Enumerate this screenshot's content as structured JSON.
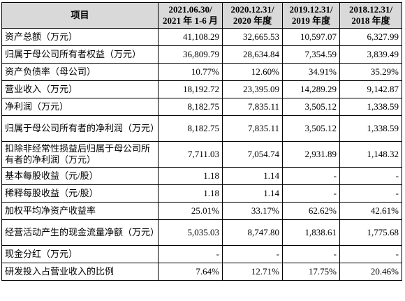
{
  "table": {
    "headers": [
      {
        "line1": "项目",
        "line2": ""
      },
      {
        "line1": "2021.06.30/",
        "line2": "2021 年 1-6 月"
      },
      {
        "line1": "2020.12.31/",
        "line2": "2020 年度"
      },
      {
        "line1": "2019.12.31/",
        "line2": "2019 年度"
      },
      {
        "line1": "2018.12.31/",
        "line2": "2018 年度"
      }
    ],
    "rows": [
      {
        "label": "资产总额（万元）",
        "values": [
          "41,108.29",
          "32,665.53",
          "10,597.07",
          "6,327.99"
        ]
      },
      {
        "label": "归属于母公司所有者权益（万元）",
        "values": [
          "36,809.79",
          "28,634.84",
          "7,354.59",
          "3,839.49"
        ]
      },
      {
        "label": "资产负债率（母公司）",
        "values": [
          "10.77%",
          "12.60%",
          "34.91%",
          "35.29%"
        ]
      },
      {
        "label": "营业收入（万元）",
        "values": [
          "18,192.72",
          "23,395.09",
          "14,289.29",
          "9,142.87"
        ]
      },
      {
        "label": "净利润（万元）",
        "values": [
          "8,182.75",
          "7,835.11",
          "3,505.12",
          "1,338.59"
        ]
      },
      {
        "label": "归属于母公司所有者的净利润（万元）",
        "values": [
          "8,182.75",
          "7,835.11",
          "3,505.12",
          "1,338.59"
        ]
      },
      {
        "label": "扣除非经常性损益后归属于母公司所有者的净利润（万元）",
        "values": [
          "7,711.03",
          "7,054.74",
          "2,931.89",
          "1,148.32"
        ]
      },
      {
        "label": "基本每股收益（元/股）",
        "values": [
          "1.18",
          "1.14",
          "-",
          "-"
        ]
      },
      {
        "label": "稀释每股收益（元/股）",
        "values": [
          "1.18",
          "1.14",
          "-",
          "-"
        ]
      },
      {
        "label": "加权平均净资产收益率",
        "values": [
          "25.01%",
          "33.17%",
          "62.62%",
          "42.61%"
        ]
      },
      {
        "label": "经营活动产生的现金流量净额（万元）",
        "values": [
          "5,035.03",
          "8,747.80",
          "1,838.61",
          "1,775.68"
        ]
      },
      {
        "label": "现金分红（万元）",
        "values": [
          "-",
          "-",
          "-",
          "-"
        ]
      },
      {
        "label": "研发投入占营业收入的比例",
        "values": [
          "7.64%",
          "12.71%",
          "17.75%",
          "20.46%"
        ]
      }
    ]
  }
}
